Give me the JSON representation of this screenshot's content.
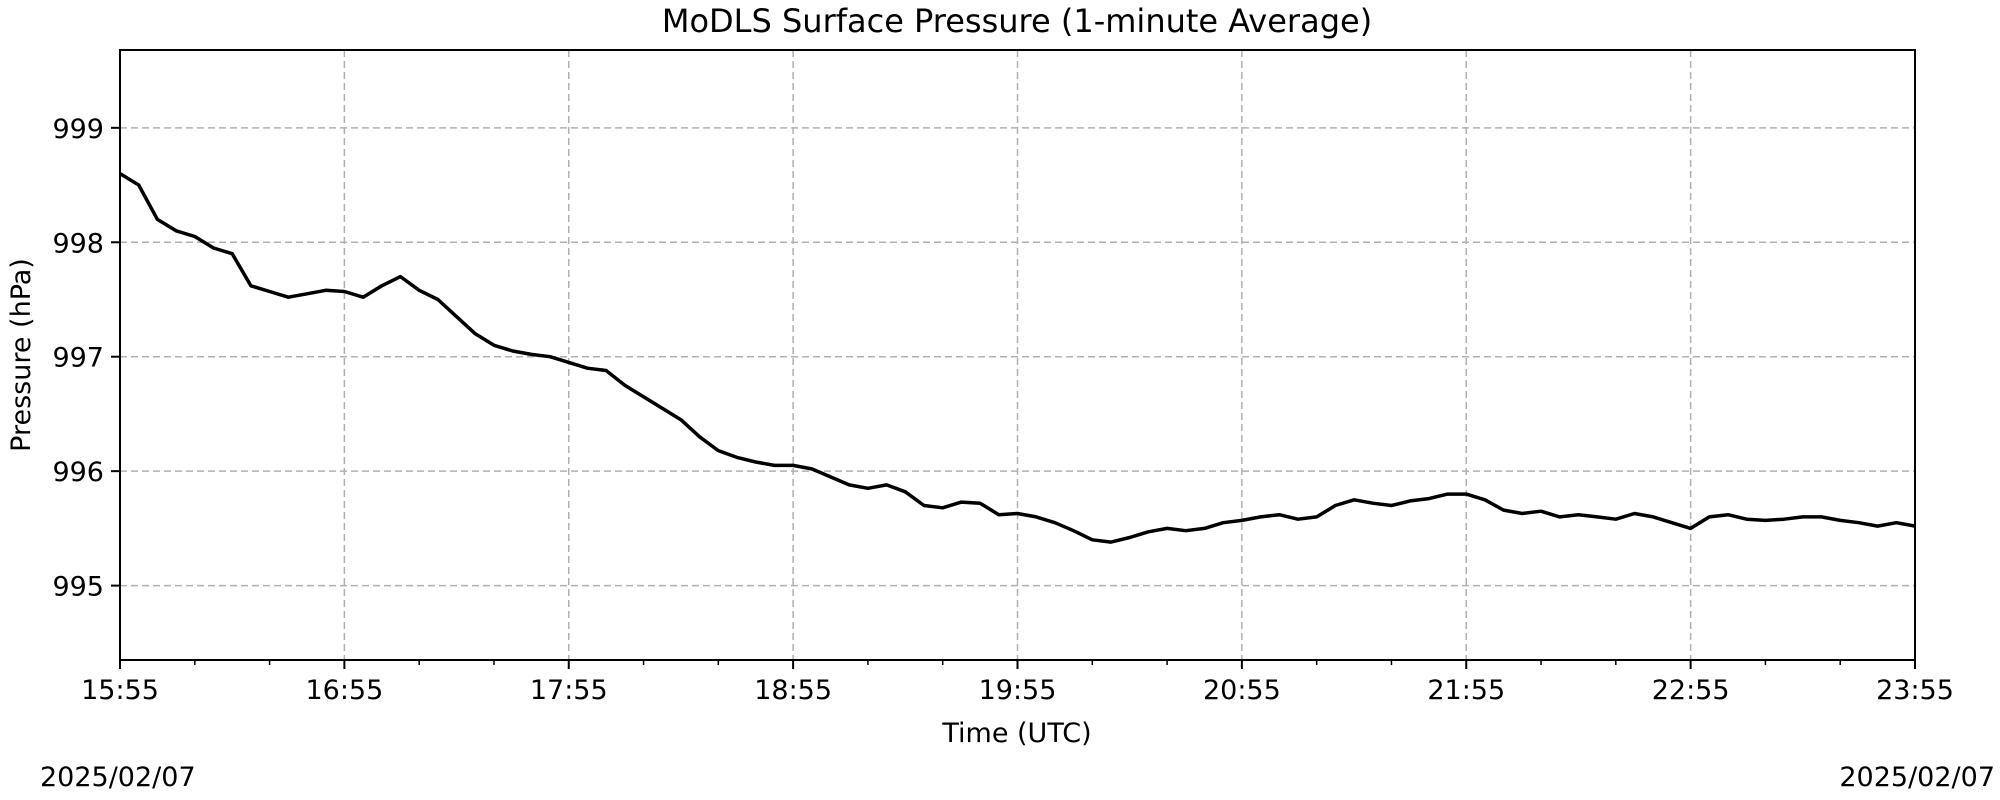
{
  "chart_data": {
    "type": "line",
    "title": "MoDLS Surface Pressure (1-minute Average)",
    "xlabel": "Time (UTC)",
    "ylabel": "Pressure (hPa)",
    "date_left": "2025/02/07",
    "date_right": "2025/02/07",
    "x_tick_labels": [
      "15:55",
      "16:55",
      "17:55",
      "18:55",
      "19:55",
      "20:55",
      "21:55",
      "22:55",
      "23:55"
    ],
    "y_tick_labels": [
      "995",
      "996",
      "997",
      "998",
      "999"
    ],
    "ylim": [
      994.35,
      999.68
    ],
    "xlim": [
      "15:55",
      "23:55"
    ],
    "grid": true,
    "grid_style": "dashed",
    "line_color": "#000000",
    "grid_color": "#b0b0b0",
    "series": [
      {
        "x": [
          "15:55",
          "16:00",
          "16:05",
          "16:10",
          "16:15",
          "16:20",
          "16:25",
          "16:30",
          "16:35",
          "16:40",
          "16:45",
          "16:50",
          "16:55",
          "17:00",
          "17:05",
          "17:10",
          "17:15",
          "17:20",
          "17:25",
          "17:30",
          "17:35",
          "17:40",
          "17:45",
          "17:50",
          "17:55",
          "18:00",
          "18:05",
          "18:10",
          "18:15",
          "18:20",
          "18:25",
          "18:30",
          "18:35",
          "18:40",
          "18:45",
          "18:50",
          "18:55",
          "19:00",
          "19:05",
          "19:10",
          "19:15",
          "19:20",
          "19:25",
          "19:30",
          "19:35",
          "19:40",
          "19:45",
          "19:50",
          "19:55",
          "20:00",
          "20:05",
          "20:10",
          "20:15",
          "20:20",
          "20:25",
          "20:30",
          "20:35",
          "20:40",
          "20:45",
          "20:50",
          "20:55",
          "21:00",
          "21:05",
          "21:10",
          "21:15",
          "21:20",
          "21:25",
          "21:30",
          "21:35",
          "21:40",
          "21:45",
          "21:50",
          "21:55",
          "22:00",
          "22:05",
          "22:10",
          "22:15",
          "22:20",
          "22:25",
          "22:30",
          "22:35",
          "22:40",
          "22:45",
          "22:50",
          "22:55",
          "23:00",
          "23:05",
          "23:10",
          "23:15",
          "23:20",
          "23:25",
          "23:30",
          "23:35",
          "23:40",
          "23:45",
          "23:50",
          "23:55"
        ],
        "y": [
          998.6,
          998.5,
          998.2,
          998.1,
          998.05,
          997.95,
          997.9,
          997.62,
          997.57,
          997.52,
          997.55,
          997.58,
          997.57,
          997.52,
          997.62,
          997.7,
          997.58,
          997.5,
          997.35,
          997.2,
          997.1,
          997.05,
          997.02,
          997.0,
          996.95,
          996.9,
          996.88,
          996.75,
          996.65,
          996.55,
          996.45,
          996.3,
          996.18,
          996.12,
          996.08,
          996.05,
          996.05,
          996.02,
          995.95,
          995.88,
          995.85,
          995.88,
          995.82,
          995.7,
          995.68,
          995.73,
          995.72,
          995.62,
          995.63,
          995.6,
          995.55,
          995.48,
          995.4,
          995.38,
          995.42,
          995.47,
          995.5,
          995.48,
          995.5,
          995.55,
          995.57,
          995.6,
          995.62,
          995.58,
          995.6,
          995.7,
          995.75,
          995.72,
          995.7,
          995.74,
          995.76,
          995.8,
          995.8,
          995.75,
          995.66,
          995.63,
          995.65,
          995.6,
          995.62,
          995.6,
          995.58,
          995.63,
          995.6,
          995.55,
          995.5,
          995.6,
          995.62,
          995.58,
          995.57,
          995.58,
          995.6,
          995.6,
          995.57,
          995.55,
          995.52,
          995.55,
          995.52
        ]
      }
    ]
  }
}
